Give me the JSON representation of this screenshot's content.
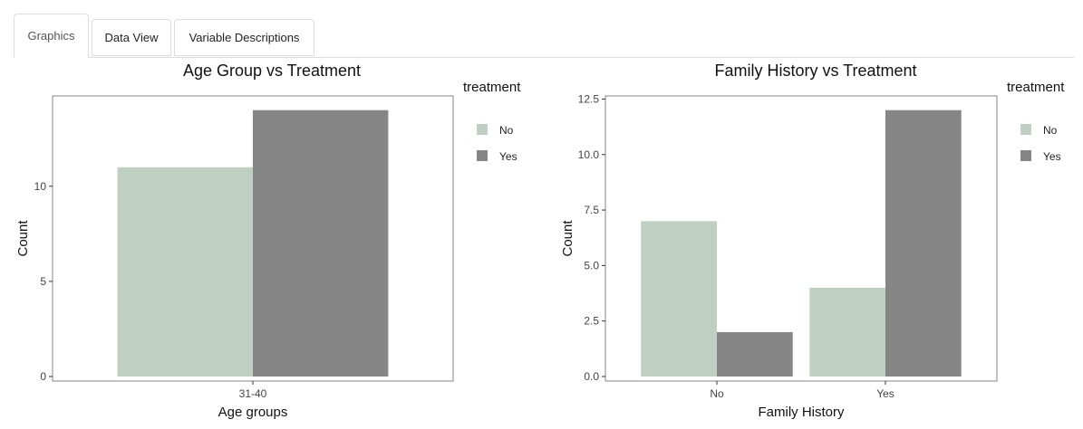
{
  "tabs": [
    {
      "label": "Graphics",
      "active": true
    },
    {
      "label": "Data View",
      "active": false
    },
    {
      "label": "Variable Descriptions",
      "active": false
    }
  ],
  "colors": {
    "No": "#bfcfc2",
    "Yes": "#868686",
    "panel_border": "#9a9a9a",
    "axis_text": "#444444"
  },
  "chart_data": [
    {
      "type": "bar",
      "title": "Age Group vs Treatment",
      "xlabel": "Age groups",
      "ylabel": "Count",
      "categories": [
        "31-40"
      ],
      "series": [
        {
          "name": "No",
          "values": [
            11
          ]
        },
        {
          "name": "Yes",
          "values": [
            14
          ]
        }
      ],
      "ylim": [
        0,
        14.7
      ],
      "yticks": [
        0,
        5,
        10
      ],
      "ytick_labels": [
        "0",
        "5",
        "10"
      ],
      "legend": {
        "title": "treatment",
        "position": "right"
      },
      "grid": false
    },
    {
      "type": "bar",
      "title": "Family History vs Treatment",
      "xlabel": "Family History",
      "ylabel": "Count",
      "categories": [
        "No",
        "Yes"
      ],
      "series": [
        {
          "name": "No",
          "values": [
            7,
            4
          ]
        },
        {
          "name": "Yes",
          "values": [
            2,
            12
          ]
        }
      ],
      "ylim": [
        0,
        12.6
      ],
      "yticks": [
        0,
        2.5,
        5,
        7.5,
        10,
        12.5
      ],
      "ytick_labels": [
        "0.0",
        "2.5",
        "5.0",
        "7.5",
        "10.0",
        "12.5"
      ],
      "legend": {
        "title": "treatment",
        "position": "right"
      },
      "grid": false
    }
  ]
}
